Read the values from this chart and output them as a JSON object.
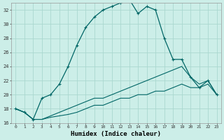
{
  "title": "",
  "xlabel": "Humidex (Indice chaleur)",
  "bg_color": "#cceee8",
  "grid_color": "#aad8d0",
  "line_color": "#006666",
  "ylim": [
    16,
    33
  ],
  "yticks": [
    16,
    18,
    20,
    22,
    24,
    26,
    28,
    30,
    32
  ],
  "xticks": [
    0,
    1,
    2,
    3,
    4,
    5,
    6,
    7,
    8,
    9,
    10,
    11,
    12,
    13,
    14,
    15,
    16,
    17,
    18,
    19,
    20,
    21,
    22,
    23
  ],
  "line1_x": [
    0,
    1,
    2,
    3,
    4,
    5,
    6,
    7,
    8,
    9,
    10,
    11,
    12,
    13,
    14,
    15,
    16,
    17,
    18,
    19,
    20,
    21,
    22,
    23
  ],
  "line1_y": [
    18.0,
    17.5,
    16.5,
    19.5,
    20.0,
    21.5,
    24.0,
    27.0,
    29.5,
    31.0,
    32.0,
    32.5,
    33.0,
    33.5,
    31.5,
    32.5,
    32.0,
    28.0,
    25.0,
    25.0,
    22.5,
    21.0,
    22.0,
    20.0
  ],
  "line2_x": [
    0,
    1,
    2,
    3,
    4,
    5,
    6,
    7,
    8,
    9,
    10,
    11,
    12,
    13,
    14,
    15,
    16,
    17,
    18,
    19,
    20,
    21,
    22,
    23
  ],
  "line2_y": [
    18.0,
    17.5,
    16.5,
    16.5,
    17.0,
    17.5,
    18.0,
    18.5,
    19.0,
    19.5,
    19.5,
    20.0,
    20.5,
    21.0,
    21.5,
    22.0,
    22.5,
    23.0,
    23.5,
    24.0,
    22.5,
    21.5,
    22.0,
    20.0
  ],
  "line3_x": [
    0,
    1,
    2,
    3,
    4,
    5,
    6,
    7,
    8,
    9,
    10,
    11,
    12,
    13,
    14,
    15,
    16,
    17,
    18,
    19,
    20,
    21,
    22,
    23
  ],
  "line3_y": [
    18.0,
    17.5,
    16.5,
    16.5,
    16.8,
    17.0,
    17.2,
    17.5,
    18.0,
    18.5,
    18.5,
    19.0,
    19.5,
    19.5,
    20.0,
    20.0,
    20.5,
    20.5,
    21.0,
    21.5,
    21.0,
    21.0,
    21.5,
    20.0
  ]
}
